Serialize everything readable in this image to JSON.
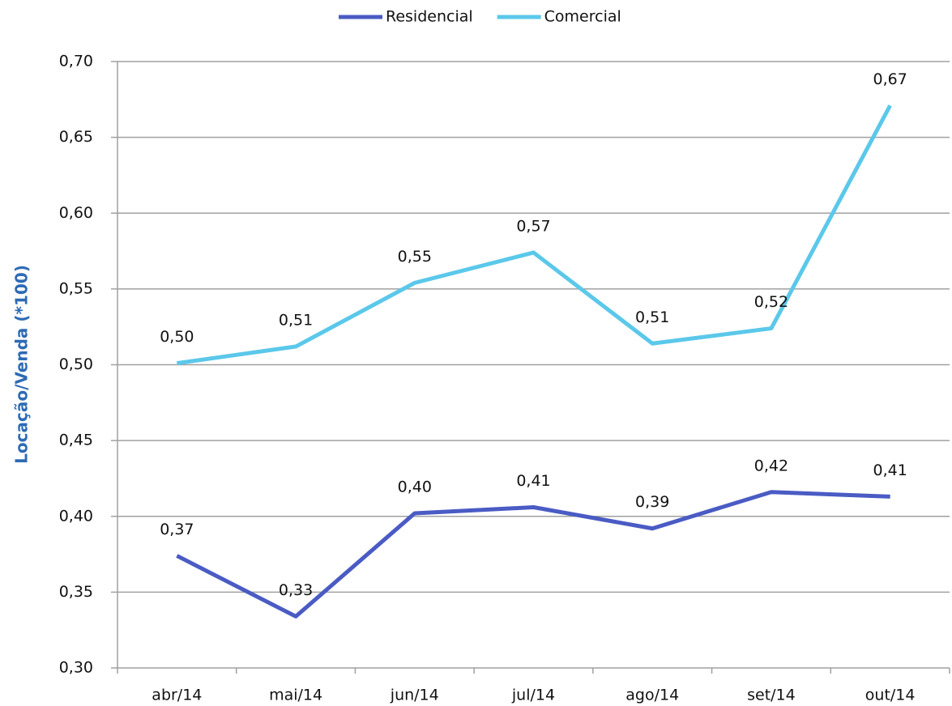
{
  "chart_data": {
    "type": "line",
    "y_label": "Locação/Venda (*100)",
    "categories": [
      "abr/14",
      "mai/14",
      "jun/14",
      "jul/14",
      "ago/14",
      "set/14",
      "out/14"
    ],
    "series": [
      {
        "name": "Residencial",
        "color": "#4a5bc4",
        "values": [
          0.374,
          0.334,
          0.402,
          0.406,
          0.392,
          0.416,
          0.413
        ],
        "value_labels": [
          "0,37",
          "0,33",
          "0,40",
          "0,41",
          "0,39",
          "0,42",
          "0,41"
        ]
      },
      {
        "name": "Comercial",
        "color": "#5bc8ea",
        "values": [
          0.501,
          0.512,
          0.554,
          0.574,
          0.514,
          0.524,
          0.671
        ],
        "value_labels": [
          "0,50",
          "0,51",
          "0,55",
          "0,57",
          "0,51",
          "0,52",
          "0,67"
        ]
      }
    ],
    "ylim": [
      0.3,
      0.7
    ],
    "yticks": [
      {
        "value": 0.3,
        "label": "0,30"
      },
      {
        "value": 0.35,
        "label": "0,35"
      },
      {
        "value": 0.4,
        "label": "0,40"
      },
      {
        "value": 0.45,
        "label": "0,45"
      },
      {
        "value": 0.5,
        "label": "0,50"
      },
      {
        "value": 0.55,
        "label": "0,55"
      },
      {
        "value": 0.6,
        "label": "0,60"
      },
      {
        "value": 0.65,
        "label": "0,65"
      },
      {
        "value": 0.7,
        "label": "0,70"
      }
    ],
    "grid": true,
    "legend": "top"
  }
}
